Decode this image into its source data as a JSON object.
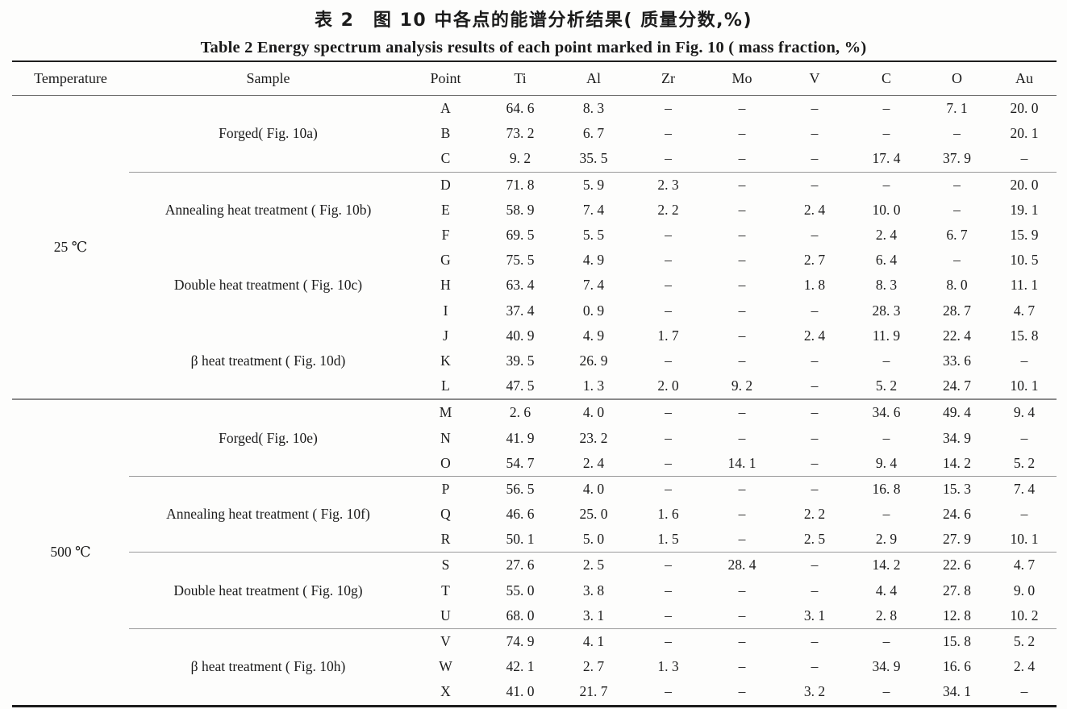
{
  "page": {
    "title_zh": "表 2　图 10 中各点的能谱分析结果( 质量分数,%)",
    "title_en": "Table 2   Energy spectrum analysis results of each point marked in Fig. 10 ( mass fraction, %)"
  },
  "table": {
    "columns": [
      "Temperature",
      "Sample",
      "Point",
      "Ti",
      "Al",
      "Zr",
      "Mo",
      "V",
      "C",
      "O",
      "Au"
    ],
    "dash": "–",
    "sections": [
      {
        "temperature": "25 ℃",
        "groups": [
          {
            "sample": "Forged( Fig. 10a)",
            "separator_before": false,
            "rows": [
              {
                "point": "A",
                "values": [
                  "64. 6",
                  "8. 3",
                  "–",
                  "–",
                  "–",
                  "–",
                  "7. 1",
                  "20. 0"
                ]
              },
              {
                "point": "B",
                "values": [
                  "73. 2",
                  "6. 7",
                  "–",
                  "–",
                  "–",
                  "–",
                  "–",
                  "20. 1"
                ]
              },
              {
                "point": "C",
                "values": [
                  "9. 2",
                  "35. 5",
                  "–",
                  "–",
                  "–",
                  "17. 4",
                  "37. 9",
                  "–"
                ]
              }
            ]
          },
          {
            "sample": "Annealing heat treatment ( Fig. 10b)",
            "separator_before": true,
            "rows": [
              {
                "point": "D",
                "values": [
                  "71. 8",
                  "5. 9",
                  "2. 3",
                  "–",
                  "–",
                  "–",
                  "–",
                  "20. 0"
                ]
              },
              {
                "point": "E",
                "values": [
                  "58. 9",
                  "7. 4",
                  "2. 2",
                  "–",
                  "2. 4",
                  "10. 0",
                  "–",
                  "19. 1"
                ]
              },
              {
                "point": "F",
                "values": [
                  "69. 5",
                  "5. 5",
                  "–",
                  "–",
                  "–",
                  "2. 4",
                  "6. 7",
                  "15. 9"
                ]
              }
            ]
          },
          {
            "sample": "Double heat treatment ( Fig. 10c)",
            "separator_before": false,
            "rows": [
              {
                "point": "G",
                "values": [
                  "75. 5",
                  "4. 9",
                  "–",
                  "–",
                  "2. 7",
                  "6. 4",
                  "–",
                  "10. 5"
                ]
              },
              {
                "point": "H",
                "values": [
                  "63. 4",
                  "7. 4",
                  "–",
                  "–",
                  "1. 8",
                  "8. 3",
                  "8. 0",
                  "11. 1"
                ]
              },
              {
                "point": "I",
                "values": [
                  "37. 4",
                  "0. 9",
                  "–",
                  "–",
                  "–",
                  "28. 3",
                  "28. 7",
                  "4. 7"
                ]
              }
            ]
          },
          {
            "sample": "β heat treatment ( Fig. 10d)",
            "separator_before": false,
            "rows": [
              {
                "point": "J",
                "values": [
                  "40. 9",
                  "4. 9",
                  "1. 7",
                  "–",
                  "2. 4",
                  "11. 9",
                  "22. 4",
                  "15. 8"
                ]
              },
              {
                "point": "K",
                "values": [
                  "39. 5",
                  "26. 9",
                  "–",
                  "–",
                  "–",
                  "–",
                  "33. 6",
                  "–"
                ]
              },
              {
                "point": "L",
                "values": [
                  "47. 5",
                  "1. 3",
                  "2. 0",
                  "9. 2",
                  "–",
                  "5. 2",
                  "24. 7",
                  "10. 1"
                ]
              }
            ]
          }
        ]
      },
      {
        "temperature": "500 ℃",
        "groups": [
          {
            "sample": "Forged( Fig. 10e)",
            "separator_before": false,
            "rows": [
              {
                "point": "M",
                "values": [
                  "2. 6",
                  "4. 0",
                  "–",
                  "–",
                  "–",
                  "34. 6",
                  "49. 4",
                  "9. 4"
                ]
              },
              {
                "point": "N",
                "values": [
                  "41. 9",
                  "23. 2",
                  "–",
                  "–",
                  "–",
                  "–",
                  "34. 9",
                  "–"
                ]
              },
              {
                "point": "O",
                "values": [
                  "54. 7",
                  "2. 4",
                  "–",
                  "14. 1",
                  "–",
                  "9. 4",
                  "14. 2",
                  "5. 2"
                ]
              }
            ]
          },
          {
            "sample": "Annealing heat treatment ( Fig. 10f)",
            "separator_before": true,
            "rows": [
              {
                "point": "P",
                "values": [
                  "56. 5",
                  "4. 0",
                  "–",
                  "–",
                  "–",
                  "16. 8",
                  "15. 3",
                  "7. 4"
                ]
              },
              {
                "point": "Q",
                "values": [
                  "46. 6",
                  "25. 0",
                  "1. 6",
                  "–",
                  "2. 2",
                  "–",
                  "24. 6",
                  "–"
                ]
              },
              {
                "point": "R",
                "values": [
                  "50. 1",
                  "5. 0",
                  "1. 5",
                  "–",
                  "2. 5",
                  "2. 9",
                  "27. 9",
                  "10. 1"
                ]
              }
            ]
          },
          {
            "sample": "Double heat treatment ( Fig. 10g)",
            "separator_before": true,
            "rows": [
              {
                "point": "S",
                "values": [
                  "27. 6",
                  "2. 5",
                  "–",
                  "28. 4",
                  "–",
                  "14. 2",
                  "22. 6",
                  "4. 7"
                ]
              },
              {
                "point": "T",
                "values": [
                  "55. 0",
                  "3. 8",
                  "–",
                  "–",
                  "–",
                  "4. 4",
                  "27. 8",
                  "9. 0"
                ]
              },
              {
                "point": "U",
                "values": [
                  "68. 0",
                  "3. 1",
                  "–",
                  "–",
                  "3. 1",
                  "2. 8",
                  "12. 8",
                  "10. 2"
                ]
              }
            ]
          },
          {
            "sample": "β heat treatment ( Fig. 10h)",
            "separator_before": true,
            "rows": [
              {
                "point": "V",
                "values": [
                  "74. 9",
                  "4. 1",
                  "–",
                  "–",
                  "–",
                  "–",
                  "15. 8",
                  "5. 2"
                ]
              },
              {
                "point": "W",
                "values": [
                  "42. 1",
                  "2. 7",
                  "1. 3",
                  "–",
                  "–",
                  "34. 9",
                  "16. 6",
                  "2. 4"
                ]
              },
              {
                "point": "X",
                "values": [
                  "41. 0",
                  "21. 7",
                  "–",
                  "–",
                  "3. 2",
                  "–",
                  "34. 1",
                  "–"
                ]
              }
            ]
          }
        ]
      }
    ]
  }
}
